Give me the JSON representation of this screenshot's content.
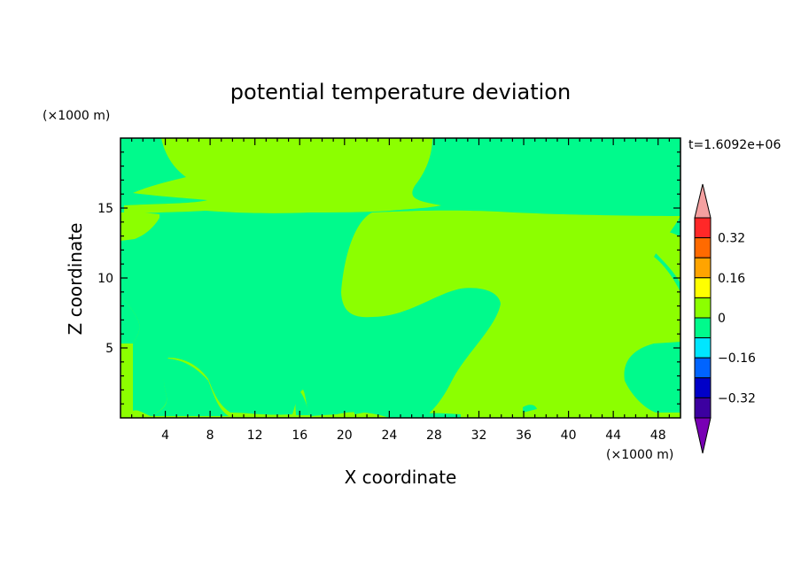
{
  "chart_data": {
    "type": "heatmap",
    "title": "potential temperature deviation",
    "xlabel": "X coordinate",
    "ylabel": "Z coordinate",
    "x_unit": "(×1000 m)",
    "y_unit": "(×1000 m)",
    "time_label": "t=1.6092e+06",
    "xlim": [
      0,
      50
    ],
    "ylim": [
      0,
      20
    ],
    "x_ticks": [
      4,
      8,
      12,
      16,
      20,
      24,
      28,
      32,
      36,
      40,
      44,
      48
    ],
    "y_ticks": [
      5,
      10,
      15
    ],
    "colorbar": {
      "levels": [
        {
          "color": "#f4a0a0"
        },
        {
          "color": "#ff2828"
        },
        {
          "color": "#ff6a00"
        },
        {
          "color": "#ffa400"
        },
        {
          "color": "#ffff00"
        },
        {
          "color": "#8cff00"
        },
        {
          "color": "#00fa8c"
        },
        {
          "color": "#00e6ff"
        },
        {
          "color": "#0064ff"
        },
        {
          "color": "#0000c8"
        },
        {
          "color": "#3c00a0"
        },
        {
          "color": "#7800b4"
        }
      ],
      "tick_labels": [
        "0.32",
        "0.16",
        "0",
        "−0.16",
        "−0.32"
      ]
    },
    "field_colors": {
      "zero_to_pos": "#8cff00",
      "neg_to_zero": "#00fa8c"
    }
  }
}
